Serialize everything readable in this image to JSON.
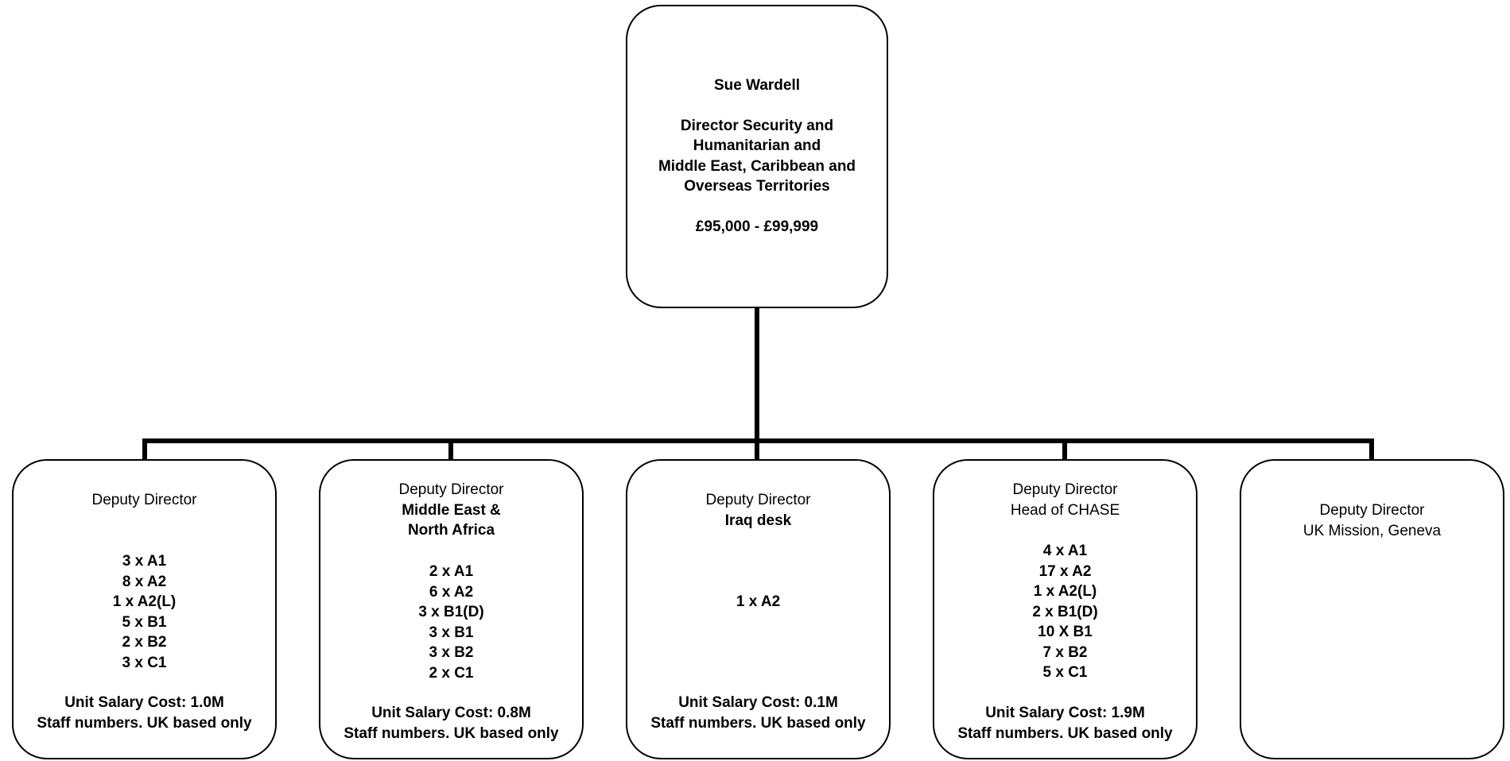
{
  "director": {
    "name": "Sue Wardell",
    "title_lines": [
      "Director Security and",
      "Humanitarian  and",
      "Middle East, Caribbean and",
      "Overseas Territories"
    ],
    "salary": "£95,000 - £99,999"
  },
  "deputies": [
    {
      "role": "Deputy Director",
      "unit_lines": [],
      "grades": [
        "3 x A1",
        "8 x A2",
        "1 x A2(L)",
        "5 x B1",
        "2 x B2",
        "3 x C1"
      ],
      "cost": "Unit Salary Cost:  1.0M",
      "staff_note": "Staff numbers. UK based only"
    },
    {
      "role": "Deputy Director",
      "unit_lines": [
        "Middle East &",
        "North Africa"
      ],
      "grades": [
        "2 x A1",
        "6 x A2",
        "3 x B1(D)",
        "3 x B1",
        "3 x B2",
        "2 x C1"
      ],
      "cost": "Unit Salary Cost:  0.8M",
      "staff_note": "Staff numbers. UK based only"
    },
    {
      "role": "Deputy Director",
      "unit_lines": [
        "Iraq desk"
      ],
      "grades": [
        "1 x A2"
      ],
      "cost": "Unit Salary Cost:  0.1M",
      "staff_note": "Staff numbers. UK based only"
    },
    {
      "role": "Deputy Director",
      "unit_lines": [
        "Head of CHASE"
      ],
      "grades": [
        "4 x A1",
        "17 x A2",
        "1 x A2(L)",
        "2 x B1(D)",
        "10 X B1",
        "7 x B2",
        "5 x C1"
      ],
      "cost": "Unit Salary Cost:  1.9M",
      "staff_note": "Staff numbers. UK based only"
    },
    {
      "role": "Deputy Director",
      "unit_lines": [
        "UK Mission, Geneva"
      ],
      "grades": [],
      "cost": "",
      "staff_note": ""
    }
  ],
  "colors": {
    "line": "#000000",
    "box_border": "#000000",
    "box_fill": "#ffffff"
  }
}
